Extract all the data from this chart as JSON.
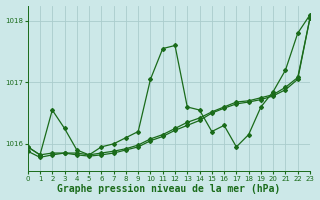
{
  "bg_color": "#cce8e8",
  "grid_color": "#aacccc",
  "line_color": "#1a6b1a",
  "title": "Graphe pression niveau de la mer (hPa)",
  "xlim": [
    0,
    23
  ],
  "ylim": [
    1015.55,
    1018.25
  ],
  "yticks": [
    1016,
    1017,
    1018
  ],
  "xticks": [
    0,
    1,
    2,
    3,
    4,
    5,
    6,
    7,
    8,
    9,
    10,
    11,
    12,
    13,
    14,
    15,
    16,
    17,
    18,
    19,
    20,
    21,
    22,
    23
  ],
  "series1_x": [
    0,
    1,
    2,
    3,
    4,
    5,
    6,
    7,
    8,
    9,
    10,
    11,
    12,
    13,
    14,
    15,
    16,
    17,
    18,
    19,
    20,
    21,
    22,
    23
  ],
  "series1_y": [
    1015.95,
    1015.82,
    1016.55,
    1016.25,
    1015.9,
    1015.82,
    1015.95,
    1016.0,
    1016.1,
    1016.2,
    1017.05,
    1017.55,
    1017.6,
    1016.6,
    1016.55,
    1016.2,
    1016.3,
    1015.95,
    1016.15,
    1016.6,
    1016.85,
    1017.2,
    1017.8,
    1018.1
  ],
  "series2_x": [
    0,
    1,
    2,
    3,
    4,
    5,
    6,
    7,
    8,
    9,
    10,
    11,
    12,
    13,
    14,
    15,
    16,
    17,
    18,
    19,
    20,
    21,
    22,
    23
  ],
  "series2_y": [
    1015.88,
    1015.78,
    1015.82,
    1015.85,
    1015.82,
    1015.8,
    1015.82,
    1015.85,
    1015.9,
    1015.95,
    1016.05,
    1016.12,
    1016.22,
    1016.3,
    1016.38,
    1016.5,
    1016.58,
    1016.65,
    1016.68,
    1016.72,
    1016.78,
    1016.88,
    1017.05,
    1018.05
  ],
  "series3_x": [
    0,
    1,
    2,
    3,
    4,
    5,
    6,
    7,
    8,
    9,
    10,
    11,
    12,
    13,
    14,
    15,
    16,
    17,
    18,
    19,
    20,
    21,
    22,
    23
  ],
  "series3_y": [
    1015.95,
    1015.82,
    1015.85,
    1015.85,
    1015.85,
    1015.82,
    1015.85,
    1015.88,
    1015.92,
    1015.98,
    1016.08,
    1016.15,
    1016.25,
    1016.35,
    1016.42,
    1016.52,
    1016.6,
    1016.68,
    1016.7,
    1016.75,
    1016.8,
    1016.92,
    1017.08,
    1018.05
  ],
  "marker": "D",
  "marker_size": 2.0,
  "lw": 0.9,
  "title_fontsize": 7,
  "tick_fontsize": 5.0
}
